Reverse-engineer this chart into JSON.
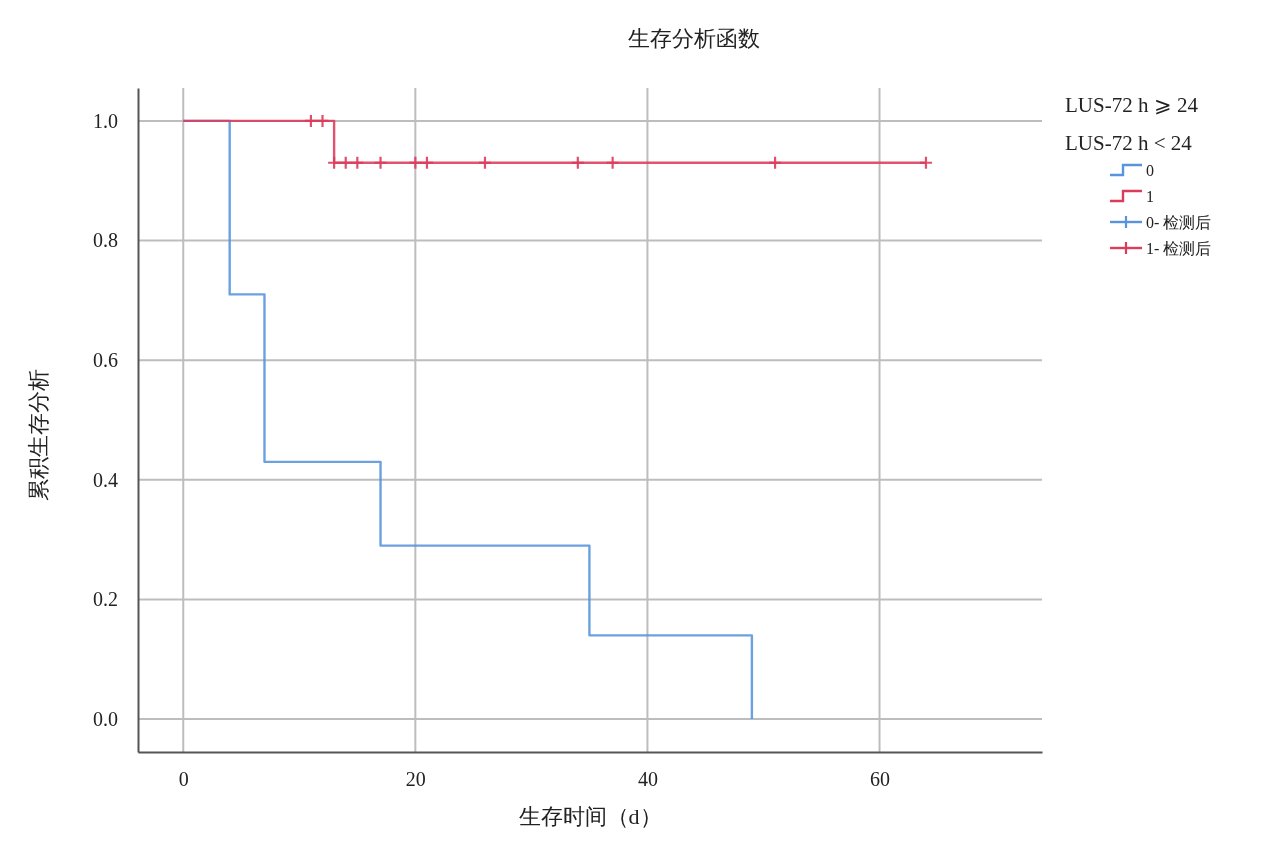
{
  "chart_data": {
    "type": "step",
    "title": "生存分析函数",
    "xlabel": "生存时间（d）",
    "ylabel": "累积生存分析",
    "legend_title": "LUS-72 h ⩾ 24\nLUS-72 h < 24",
    "xlim": [
      -3.9,
      74
    ],
    "xticks": [
      0,
      20,
      40,
      60
    ],
    "ylim": [
      -0.055,
      1.055
    ],
    "yticks": [
      {
        "value": 0,
        "label": "0.0"
      },
      0.2,
      0.4,
      0.6,
      0.8,
      {
        "value": 1,
        "label": "1.0"
      }
    ],
    "grid": true,
    "legend": "top right",
    "series": [
      {
        "name": "0",
        "color": "#5794db",
        "x": [
          0,
          4,
          7,
          17,
          35,
          49
        ],
        "values": [
          1,
          0.71,
          0.43,
          0.29,
          0.14,
          0
        ]
      },
      {
        "name": "1",
        "color": "#dc3c5c",
        "x": [
          0,
          13,
          64
        ],
        "values": [
          1,
          0.93,
          0.93
        ]
      },
      {
        "name": "0- 检测后",
        "type": "scatter",
        "marker": "cross",
        "color": "#5794db"
      },
      {
        "name": "1- 检测后",
        "type": "scatter",
        "marker": "cross",
        "color": "#dc3c5c",
        "x": [
          11,
          12,
          13,
          14,
          15,
          17,
          20,
          21,
          26,
          34,
          37,
          51,
          64
        ],
        "values": [
          1,
          1,
          0.93,
          0.93,
          0.93,
          0.93,
          0.93,
          0.93,
          0.93,
          0.93,
          0.93,
          0.93,
          0.93
        ]
      }
    ]
  }
}
